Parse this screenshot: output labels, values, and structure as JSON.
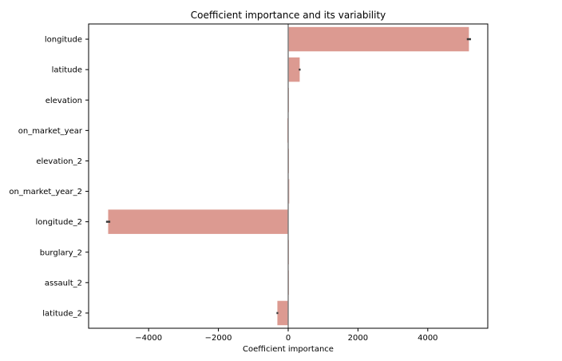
{
  "chart_data": {
    "type": "bar",
    "orientation": "horizontal",
    "title": "Coefficient importance and its variability",
    "xlabel": "Coefficient importance",
    "ylabel": "",
    "categories": [
      "longitude",
      "latitude",
      "elevation",
      "on_market_year",
      "elevation_2",
      "on_market_year_2",
      "longitude_2",
      "burglary_2",
      "assault_2",
      "latitude_2"
    ],
    "values": [
      5180,
      330,
      5,
      -25,
      3,
      30,
      -5160,
      2,
      1,
      -310
    ],
    "error_halfwidth": [
      60,
      25,
      0,
      0,
      0,
      0,
      60,
      0,
      0,
      25
    ],
    "xlim": [
      -5720,
      5720
    ],
    "xticks": [
      -4000,
      -2000,
      0,
      2000,
      4000
    ],
    "xtick_labels": [
      "−4000",
      "−2000",
      "0",
      "2000",
      "4000"
    ],
    "zero_line": true,
    "grid": false,
    "colors": {
      "bar": "#dc9a91",
      "zero_line": "#808080",
      "error_bar": "#3c3c3c"
    }
  }
}
